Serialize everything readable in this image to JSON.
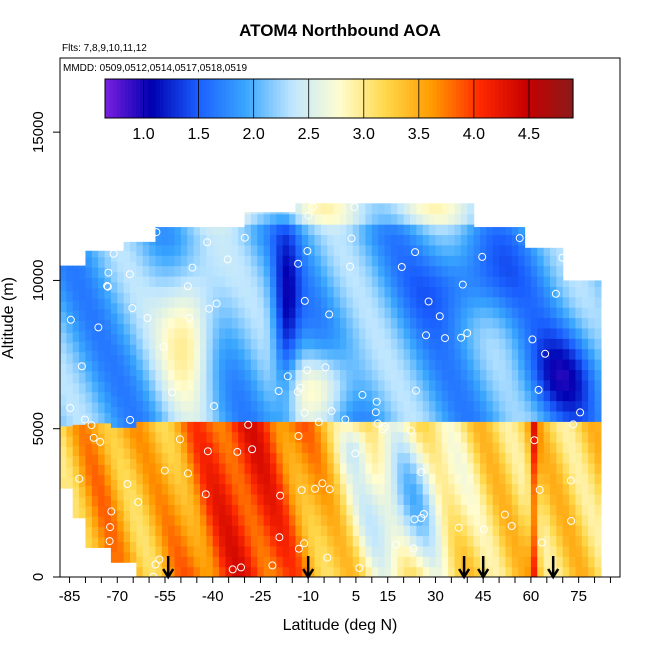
{
  "chart_data": {
    "type": "heatmap",
    "title": "ATOM4 Northbound AOA",
    "flights_label": "Flts: 7,8,9,10,11,12",
    "dates_label": "MMDD: 0509,0512,0514,0517,0518,0519",
    "xlabel": "Latitude (deg N)",
    "ylabel": "Altitude (m)",
    "xlim": [
      -88,
      88
    ],
    "ylim": [
      0,
      17500
    ],
    "x_ticks": [
      "-85",
      "-70",
      "-55",
      "-40",
      "-25",
      "-10",
      "5",
      "15",
      "30",
      "45",
      "60",
      "75"
    ],
    "x_tick_values": [
      -85,
      -70,
      -55,
      -40,
      -25,
      -10,
      5,
      15,
      30,
      45,
      60,
      75
    ],
    "y_ticks": [
      "0",
      "5000",
      "10000",
      "15000"
    ],
    "y_tick_values": [
      0,
      5000,
      10000,
      15000
    ],
    "colorbar": {
      "ticks": [
        "1.0",
        "1.5",
        "2.0",
        "2.5",
        "3.0",
        "3.5",
        "4.0",
        "4.5"
      ],
      "tick_values": [
        1.0,
        1.5,
        2.0,
        2.5,
        3.0,
        3.5,
        4.0,
        4.5
      ],
      "range": [
        0.65,
        4.9
      ],
      "colors": [
        "#7a1fe0",
        "#0000b0",
        "#1a5fff",
        "#39a6ff",
        "#bfe6ff",
        "#fffdd0",
        "#ffd84a",
        "#ff9a00",
        "#ff2a00",
        "#c80000",
        "#8b1a1a"
      ]
    },
    "profile_latitudes": [
      -54,
      -10,
      39,
      45,
      67
    ],
    "grid": false
  }
}
